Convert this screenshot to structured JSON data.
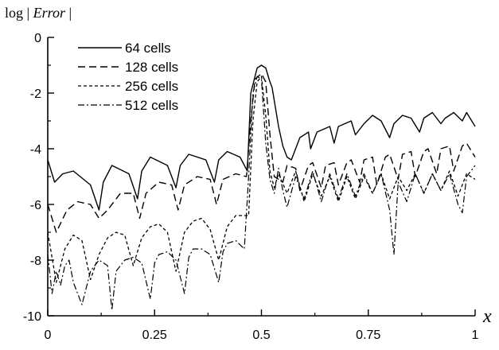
{
  "chart_data": {
    "type": "line",
    "ylabel_prefix": "log",
    "ylabel_italic": "Error",
    "xlabel": "x",
    "xlim": [
      0,
      1
    ],
    "ylim": [
      -10,
      0
    ],
    "x_ticks": [
      "0",
      "0.25",
      "0.5",
      "0.75",
      "1"
    ],
    "x_tick_values": [
      0,
      0.25,
      0.5,
      0.75,
      1
    ],
    "y_ticks": [
      "0",
      "-2",
      "-4",
      "-6",
      "-8",
      "-10"
    ],
    "y_tick_values": [
      0,
      -2,
      -4,
      -6,
      -8,
      -10
    ],
    "legend_position": "top-left",
    "grid": false,
    "series": [
      {
        "name": "64 cells",
        "style": "solid",
        "x": [
          0.0,
          0.016,
          0.035,
          0.06,
          0.1,
          0.12,
          0.13,
          0.15,
          0.19,
          0.21,
          0.22,
          0.24,
          0.28,
          0.3,
          0.31,
          0.33,
          0.37,
          0.39,
          0.4,
          0.42,
          0.45,
          0.467,
          0.475,
          0.49,
          0.5,
          0.51,
          0.52,
          0.525,
          0.54,
          0.55,
          0.56,
          0.57,
          0.59,
          0.61,
          0.615,
          0.63,
          0.66,
          0.67,
          0.68,
          0.71,
          0.72,
          0.74,
          0.76,
          0.78,
          0.8,
          0.81,
          0.83,
          0.85,
          0.87,
          0.88,
          0.9,
          0.92,
          0.93,
          0.95,
          0.97,
          0.98,
          1.0
        ],
        "y": [
          -4.4,
          -5.2,
          -4.9,
          -4.8,
          -5.3,
          -6.2,
          -5.2,
          -4.6,
          -4.9,
          -5.8,
          -4.8,
          -4.3,
          -4.6,
          -5.4,
          -4.6,
          -4.2,
          -4.4,
          -5.2,
          -4.4,
          -4.1,
          -4.3,
          -4.8,
          -2.0,
          -1.1,
          -1.0,
          -1.1,
          -1.6,
          -1.8,
          -3.2,
          -3.9,
          -4.3,
          -4.4,
          -3.6,
          -3.4,
          -4.0,
          -3.4,
          -3.2,
          -3.8,
          -3.2,
          -3.0,
          -3.5,
          -3.1,
          -2.8,
          -3.0,
          -3.6,
          -3.1,
          -2.8,
          -2.9,
          -3.4,
          -2.9,
          -2.7,
          -3.1,
          -2.9,
          -2.7,
          -3.0,
          -2.7,
          -3.2
        ]
      },
      {
        "name": "128 cells",
        "style": "dashed",
        "x": [
          0.0,
          0.02,
          0.045,
          0.07,
          0.1,
          0.12,
          0.14,
          0.17,
          0.2,
          0.215,
          0.23,
          0.26,
          0.29,
          0.305,
          0.32,
          0.35,
          0.38,
          0.395,
          0.41,
          0.44,
          0.465,
          0.475,
          0.485,
          0.5,
          0.51,
          0.52,
          0.53,
          0.55,
          0.56,
          0.58,
          0.59,
          0.61,
          0.62,
          0.64,
          0.65,
          0.67,
          0.68,
          0.7,
          0.71,
          0.73,
          0.74,
          0.76,
          0.77,
          0.79,
          0.8,
          0.82,
          0.83,
          0.85,
          0.86,
          0.88,
          0.89,
          0.91,
          0.92,
          0.94,
          0.95,
          0.97,
          0.98,
          1.0
        ],
        "y": [
          -6.0,
          -7.0,
          -6.2,
          -5.9,
          -6.0,
          -6.5,
          -6.2,
          -5.6,
          -5.6,
          -6.5,
          -5.6,
          -5.2,
          -5.3,
          -6.2,
          -5.3,
          -5.0,
          -5.1,
          -6.0,
          -5.1,
          -4.9,
          -5.0,
          -3.0,
          -1.5,
          -1.3,
          -1.6,
          -3.5,
          -5.0,
          -5.2,
          -4.6,
          -4.7,
          -5.5,
          -4.6,
          -4.5,
          -5.4,
          -4.6,
          -4.5,
          -5.3,
          -4.5,
          -4.4,
          -5.2,
          -4.4,
          -4.3,
          -5.3,
          -4.3,
          -4.2,
          -5.1,
          -4.2,
          -4.1,
          -5.0,
          -4.1,
          -4.0,
          -4.9,
          -4.0,
          -3.9,
          -4.8,
          -3.9,
          -3.8,
          -4.3
        ]
      },
      {
        "name": "256 cells",
        "style": "short-dashed",
        "x": [
          0.0,
          0.02,
          0.04,
          0.06,
          0.08,
          0.1,
          0.12,
          0.14,
          0.16,
          0.18,
          0.2,
          0.22,
          0.24,
          0.26,
          0.28,
          0.3,
          0.32,
          0.34,
          0.36,
          0.38,
          0.4,
          0.42,
          0.44,
          0.47,
          0.48,
          0.49,
          0.5,
          0.51,
          0.52,
          0.53,
          0.54,
          0.56,
          0.58,
          0.6,
          0.62,
          0.64,
          0.66,
          0.68,
          0.7,
          0.72,
          0.74,
          0.76,
          0.78,
          0.8,
          0.82,
          0.84,
          0.86,
          0.88,
          0.9,
          0.92,
          0.94,
          0.96,
          0.98,
          1.0
        ],
        "y": [
          -7.0,
          -8.8,
          -7.6,
          -7.1,
          -7.3,
          -8.7,
          -7.8,
          -7.2,
          -7.0,
          -7.1,
          -8.2,
          -7.2,
          -6.8,
          -6.7,
          -7.0,
          -8.4,
          -7.0,
          -6.6,
          -6.5,
          -6.9,
          -8.0,
          -6.8,
          -6.4,
          -6.4,
          -3.0,
          -1.6,
          -1.4,
          -2.8,
          -4.8,
          -5.4,
          -4.9,
          -5.6,
          -4.8,
          -5.9,
          -4.9,
          -5.7,
          -5.0,
          -5.9,
          -5.0,
          -5.8,
          -5.0,
          -5.6,
          -4.9,
          -5.8,
          -5.0,
          -5.5,
          -4.9,
          -5.6,
          -4.9,
          -5.5,
          -4.8,
          -5.7,
          -4.9,
          -5.1
        ]
      },
      {
        "name": "512 cells",
        "style": "dash-dot",
        "x": [
          0.0,
          0.01,
          0.02,
          0.03,
          0.04,
          0.05,
          0.06,
          0.08,
          0.1,
          0.12,
          0.14,
          0.15,
          0.16,
          0.18,
          0.2,
          0.22,
          0.24,
          0.25,
          0.26,
          0.28,
          0.3,
          0.32,
          0.33,
          0.34,
          0.36,
          0.38,
          0.4,
          0.41,
          0.42,
          0.44,
          0.46,
          0.47,
          0.48,
          0.49,
          0.5,
          0.51,
          0.52,
          0.53,
          0.54,
          0.55,
          0.56,
          0.58,
          0.6,
          0.62,
          0.64,
          0.66,
          0.68,
          0.7,
          0.72,
          0.74,
          0.76,
          0.78,
          0.8,
          0.81,
          0.82,
          0.84,
          0.86,
          0.88,
          0.9,
          0.92,
          0.94,
          0.96,
          0.97,
          0.98,
          1.0
        ],
        "y": [
          -7.8,
          -9.2,
          -8.4,
          -8.9,
          -8.2,
          -8.0,
          -8.8,
          -9.6,
          -8.4,
          -8.0,
          -8.2,
          -9.8,
          -8.4,
          -8.0,
          -7.9,
          -8.1,
          -9.4,
          -8.1,
          -7.8,
          -7.7,
          -8.0,
          -9.2,
          -7.9,
          -7.6,
          -7.6,
          -7.8,
          -8.8,
          -7.7,
          -7.4,
          -7.3,
          -7.6,
          -5.0,
          -2.0,
          -1.4,
          -1.5,
          -3.8,
          -5.1,
          -5.6,
          -4.7,
          -5.5,
          -6.1,
          -5.0,
          -5.8,
          -4.8,
          -5.9,
          -4.9,
          -5.8,
          -4.9,
          -5.7,
          -4.9,
          -5.6,
          -4.9,
          -6.2,
          -7.8,
          -5.2,
          -5.9,
          -4.9,
          -5.6,
          -4.9,
          -5.5,
          -4.9,
          -6.0,
          -6.3,
          -5.0,
          -4.6
        ]
      }
    ]
  }
}
